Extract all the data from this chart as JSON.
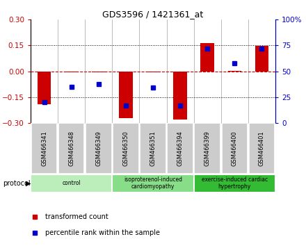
{
  "title": "GDS3596 / 1421361_at",
  "samples": [
    "GSM466341",
    "GSM466348",
    "GSM466349",
    "GSM466350",
    "GSM466351",
    "GSM466394",
    "GSM466399",
    "GSM466400",
    "GSM466401"
  ],
  "red_values": [
    -0.19,
    -0.005,
    -0.005,
    -0.27,
    -0.005,
    -0.28,
    0.165,
    0.002,
    0.148
  ],
  "blue_values": [
    20,
    35,
    38,
    17,
    34,
    17,
    72,
    58,
    72
  ],
  "ylim_left": [
    -0.3,
    0.3
  ],
  "ylim_right": [
    0,
    100
  ],
  "yticks_left": [
    -0.3,
    -0.15,
    0,
    0.15,
    0.3
  ],
  "yticks_right": [
    0,
    25,
    50,
    75,
    100
  ],
  "groups": [
    {
      "label": "control",
      "start": 0,
      "end": 3,
      "color": "#bbeebb"
    },
    {
      "label": "isoproterenol-induced\ncardiomyopathy",
      "start": 3,
      "end": 6,
      "color": "#88dd88"
    },
    {
      "label": "exercise-induced cardiac\nhypertrophy",
      "start": 6,
      "end": 9,
      "color": "#33bb33"
    }
  ],
  "protocol_label": "protocol",
  "legend_red": "transformed count",
  "legend_blue": "percentile rank within the sample",
  "red_color": "#cc0000",
  "blue_color": "#0000cc",
  "bar_width": 0.5,
  "background_color": "#ffffff"
}
